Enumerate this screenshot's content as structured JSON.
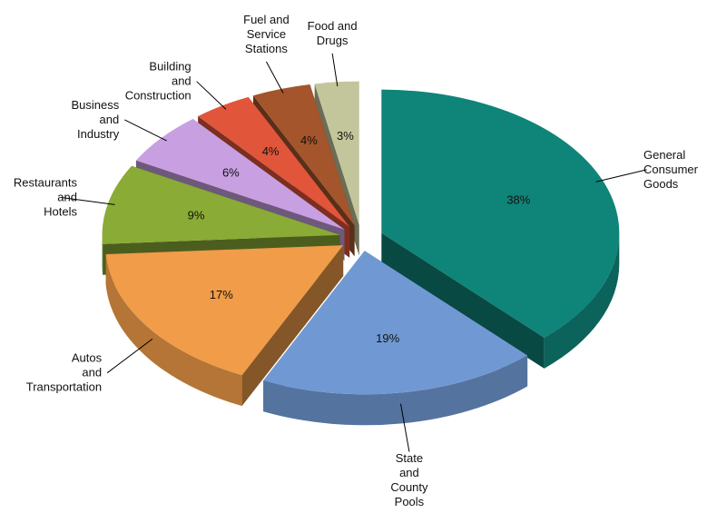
{
  "chart_data": {
    "type": "pie",
    "categories": [
      "General Consumer Goods",
      "State and County Pools",
      "Autos and Transportation",
      "Restaurants and Hotels",
      "Business and Industry",
      "Building and Construction",
      "Fuel and Service Stations",
      "Food and Drugs"
    ],
    "values": [
      38,
      19,
      17,
      9,
      6,
      4,
      4,
      3
    ],
    "value_labels": [
      "38%",
      "19%",
      "17%",
      "9%",
      "6%",
      "4%",
      "4%",
      "3%"
    ],
    "colors": [
      "#0f8479",
      "#7099d4",
      "#f09c48",
      "#8aab35",
      "#c8a0e2",
      "#e1553a",
      "#a4552c",
      "#c3c69b"
    ]
  }
}
